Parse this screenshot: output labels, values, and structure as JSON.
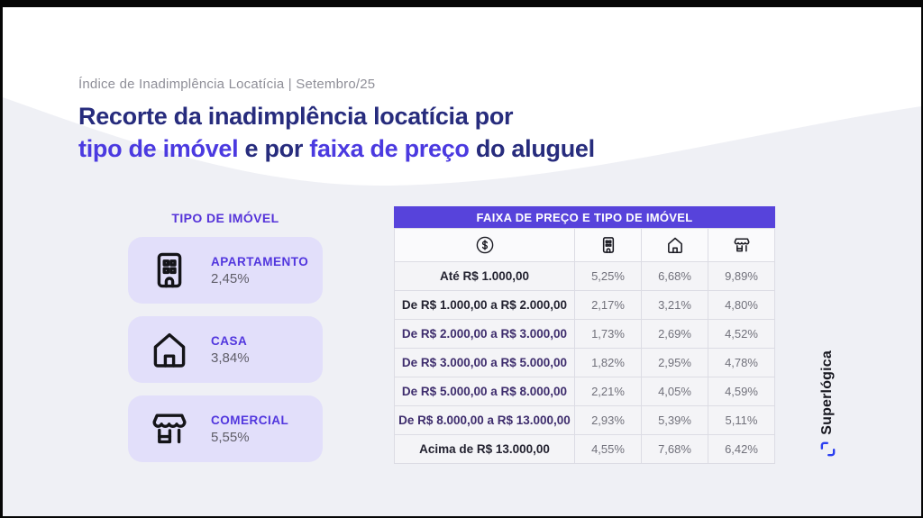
{
  "frame_bg": "#060606",
  "slide": {
    "bg": "#FFFFFF",
    "wave_color": "#EFF0F5",
    "eyebrow": "Índice de Inadimplência Locatícia | Setembro/25",
    "title": {
      "line1": "Recorte da inadimplência locatícia por",
      "line2_accent_a": "tipo de imóvel",
      "line2_plain_a": " e por ",
      "line2_accent_b": "faixa de preço",
      "line2_plain_b": " do aluguel",
      "navy_color": "#272C7D",
      "accent_color": "#4B3AE0"
    }
  },
  "property_types": {
    "heading": "TIPO DE IMÓVEL",
    "card_bg": "#E2DFFA",
    "cards": [
      {
        "icon": "apartment-icon",
        "label": "APARTAMENTO",
        "value": "2,45%"
      },
      {
        "icon": "house-icon",
        "label": "CASA",
        "value": "3,84%"
      },
      {
        "icon": "store-icon",
        "label": "COMERCIAL",
        "value": "5,55%"
      }
    ]
  },
  "table": {
    "header": "FAIXA DE PREÇO E TIPO DE IMÓVEL",
    "header_bg": "#5743DB",
    "column_icons": [
      "money-icon",
      "apartment-icon",
      "house-icon",
      "store-icon"
    ],
    "rows": [
      {
        "label": "Até R$ 1.000,00",
        "label_color": "#232230",
        "values": [
          "5,25%",
          "6,68%",
          "9,89%"
        ]
      },
      {
        "label": "De R$ 1.000,00 a R$ 2.000,00",
        "label_color": "#232230",
        "values": [
          "2,17%",
          "3,21%",
          "4,80%"
        ]
      },
      {
        "label": "De R$ 2.000,00 a R$ 3.000,00",
        "label_color": "#3E2D6D",
        "values": [
          "1,73%",
          "2,69%",
          "4,52%"
        ]
      },
      {
        "label": "De R$ 3.000,00 a R$ 5.000,00",
        "label_color": "#3E2D6D",
        "values": [
          "1,82%",
          "2,95%",
          "4,78%"
        ]
      },
      {
        "label": "De R$ 5.000,00 a R$ 8.000,00",
        "label_color": "#3E2D6D",
        "values": [
          "2,21%",
          "4,05%",
          "4,59%"
        ]
      },
      {
        "label": "De R$ 8.000,00 a R$ 13.000,00",
        "label_color": "#3E2D6D",
        "values": [
          "2,93%",
          "5,39%",
          "5,11%"
        ]
      },
      {
        "label": "Acima de R$ 13.000,00",
        "label_color": "#232230",
        "values": [
          "4,55%",
          "7,68%",
          "6,42%"
        ]
      }
    ]
  },
  "logo": {
    "text": "Superlógica",
    "mark_color": "#2B3FF0",
    "text_color": "#17171F"
  },
  "chart_data": [
    {
      "type": "table",
      "title": "TIPO DE IMÓVEL",
      "columns": [
        "Tipo de imóvel",
        "Inadimplência"
      ],
      "rows": [
        [
          "Apartamento",
          "2,45%"
        ],
        [
          "Casa",
          "3,84%"
        ],
        [
          "Comercial",
          "5,55%"
        ]
      ]
    },
    {
      "type": "table",
      "title": "FAIXA DE PREÇO E TIPO DE IMÓVEL",
      "columns": [
        "Faixa de preço",
        "Apartamento",
        "Casa",
        "Comercial"
      ],
      "rows": [
        [
          "Até R$ 1.000,00",
          "5,25%",
          "6,68%",
          "9,89%"
        ],
        [
          "De R$ 1.000,00 a R$ 2.000,00",
          "2,17%",
          "3,21%",
          "4,80%"
        ],
        [
          "De R$ 2.000,00 a R$ 3.000,00",
          "1,73%",
          "2,69%",
          "4,52%"
        ],
        [
          "De R$ 3.000,00 a R$ 5.000,00",
          "1,82%",
          "2,95%",
          "4,78%"
        ],
        [
          "De R$ 5.000,00 a R$ 8.000,00",
          "2,21%",
          "4,05%",
          "4,59%"
        ],
        [
          "De R$ 8.000,00 a R$ 13.000,00",
          "2,93%",
          "5,39%",
          "5,11%"
        ],
        [
          "Acima de R$ 13.000,00",
          "4,55%",
          "7,68%",
          "6,42%"
        ]
      ]
    }
  ]
}
